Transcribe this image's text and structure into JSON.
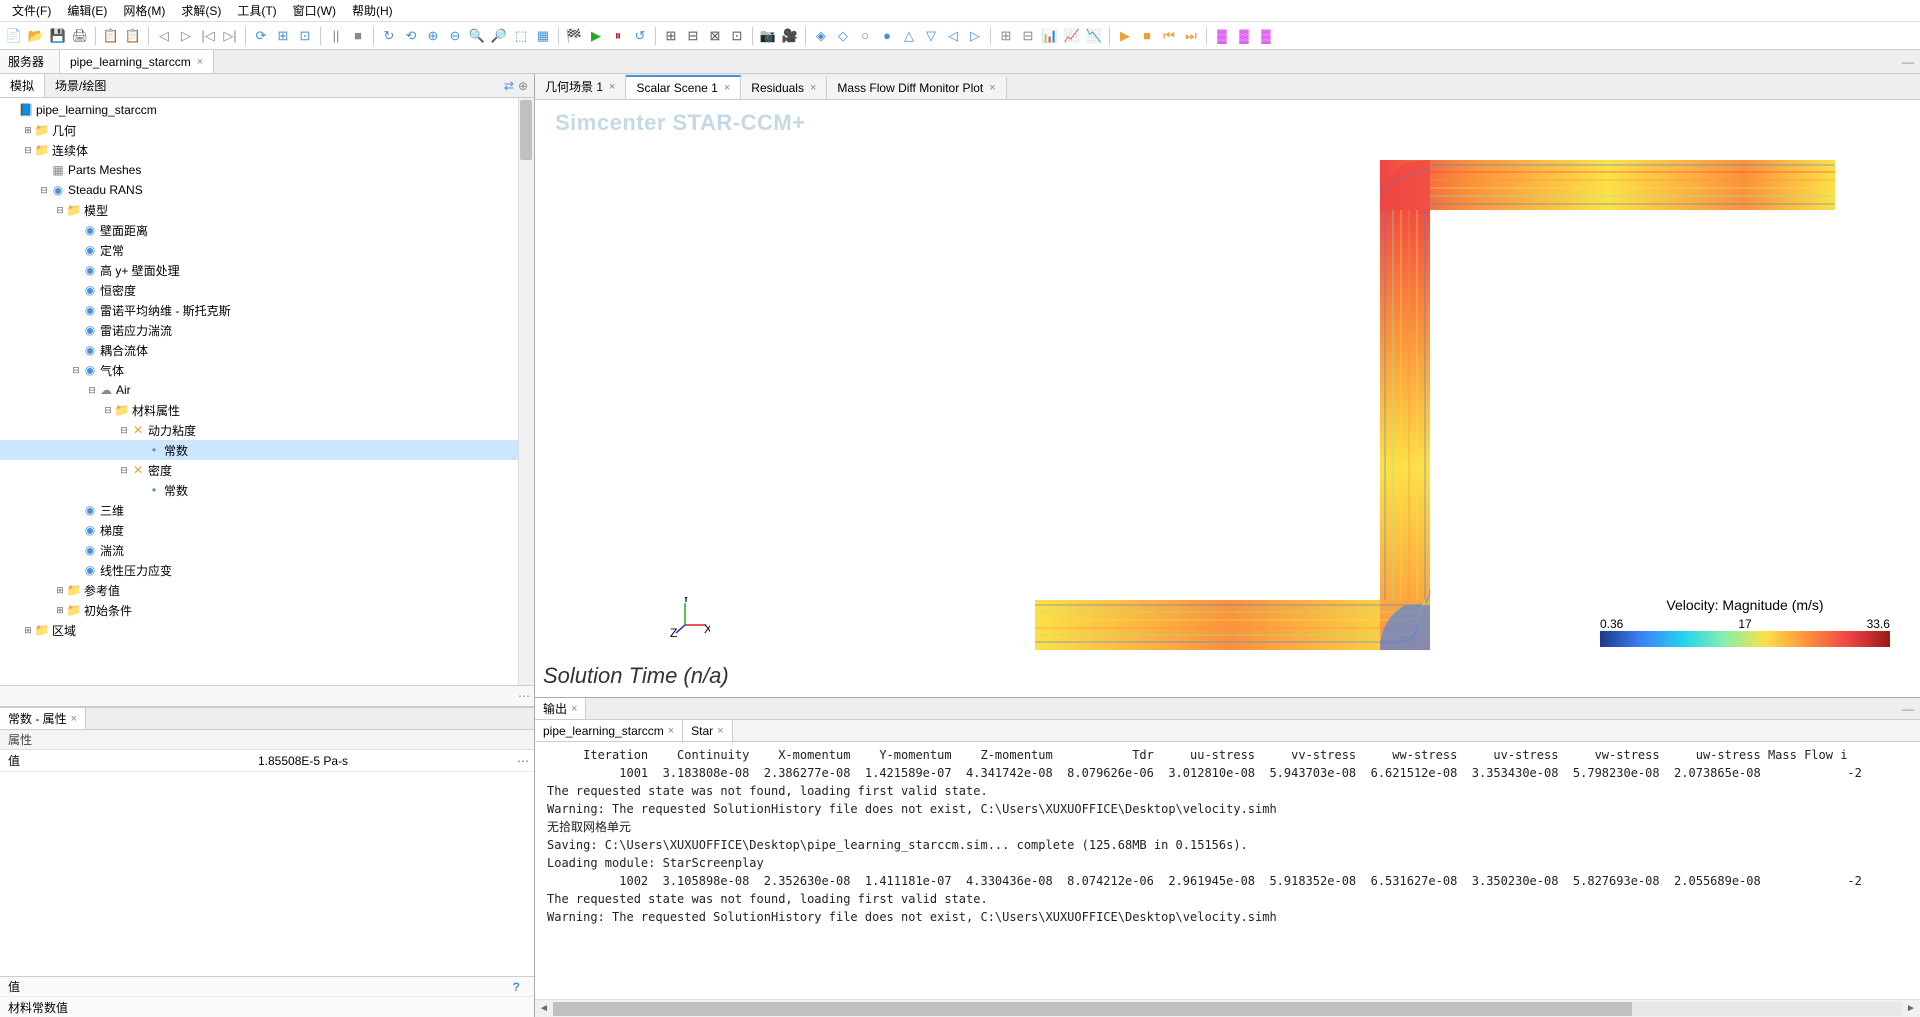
{
  "menu": [
    "文件(F)",
    "编辑(E)",
    "网格(M)",
    "求解(S)",
    "工具(T)",
    "窗口(W)",
    "帮助(H)"
  ],
  "toolbar_icons": [
    {
      "glyph": "📄",
      "c": "#e8a33d"
    },
    {
      "glyph": "📂",
      "c": "#e8a33d"
    },
    {
      "glyph": "💾",
      "c": "#4a90d9"
    },
    {
      "glyph": "🖨",
      "c": "#555"
    },
    {
      "sep": true
    },
    {
      "glyph": "📋",
      "c": "#e8a33d"
    },
    {
      "glyph": "📋",
      "c": "#4a90d9"
    },
    {
      "sep": true
    },
    {
      "glyph": "◁",
      "c": "#888"
    },
    {
      "glyph": "▷",
      "c": "#888"
    },
    {
      "glyph": "|◁",
      "c": "#888"
    },
    {
      "glyph": "▷|",
      "c": "#888"
    },
    {
      "sep": true
    },
    {
      "glyph": "⟳",
      "c": "#4a90d9"
    },
    {
      "glyph": "⊞",
      "c": "#4a90d9"
    },
    {
      "glyph": "⊡",
      "c": "#4a90d9"
    },
    {
      "sep": true
    },
    {
      "glyph": "||",
      "c": "#888"
    },
    {
      "glyph": "■",
      "c": "#888"
    },
    {
      "sep": true
    },
    {
      "glyph": "↻",
      "c": "#4a90d9"
    },
    {
      "glyph": "⟲",
      "c": "#4a90d9"
    },
    {
      "glyph": "⊕",
      "c": "#4a90d9"
    },
    {
      "glyph": "⊖",
      "c": "#4a90d9"
    },
    {
      "glyph": "🔍",
      "c": "#4a90d9"
    },
    {
      "glyph": "🔎",
      "c": "#4a90d9"
    },
    {
      "glyph": "⬚",
      "c": "#4a90d9"
    },
    {
      "glyph": "▦",
      "c": "#4a90d9"
    },
    {
      "sep": true
    },
    {
      "glyph": "🏁",
      "c": "#2a2"
    },
    {
      "glyph": "▶",
      "c": "#2a2"
    },
    {
      "glyph": "⏸",
      "c": "#a22"
    },
    {
      "glyph": "↺",
      "c": "#4a90d9"
    },
    {
      "sep": true
    },
    {
      "glyph": "⊞",
      "c": "#555"
    },
    {
      "glyph": "⊟",
      "c": "#555"
    },
    {
      "glyph": "⊠",
      "c": "#555"
    },
    {
      "glyph": "⊡",
      "c": "#555"
    },
    {
      "sep": true
    },
    {
      "glyph": "📷",
      "c": "#555"
    },
    {
      "glyph": "🎥",
      "c": "#555"
    },
    {
      "sep": true
    },
    {
      "glyph": "◈",
      "c": "#4a90d9"
    },
    {
      "glyph": "◇",
      "c": "#4a90d9"
    },
    {
      "glyph": "○",
      "c": "#4a90d9"
    },
    {
      "glyph": "●",
      "c": "#4a90d9"
    },
    {
      "glyph": "△",
      "c": "#4a90d9"
    },
    {
      "glyph": "▽",
      "c": "#4a90d9"
    },
    {
      "glyph": "◁",
      "c": "#4a90d9"
    },
    {
      "glyph": "▷",
      "c": "#4a90d9"
    },
    {
      "sep": true
    },
    {
      "glyph": "⊞",
      "c": "#888"
    },
    {
      "glyph": "⊟",
      "c": "#888"
    },
    {
      "glyph": "📊",
      "c": "#888"
    },
    {
      "glyph": "📈",
      "c": "#888"
    },
    {
      "glyph": "📉",
      "c": "#888"
    },
    {
      "sep": true
    },
    {
      "glyph": "▶",
      "c": "#e8a33d"
    },
    {
      "glyph": "■",
      "c": "#e8a33d"
    },
    {
      "glyph": "⏮",
      "c": "#e8a33d"
    },
    {
      "glyph": "⏭",
      "c": "#e8a33d"
    },
    {
      "sep": true
    },
    {
      "glyph": "▓",
      "c": "#d946ef"
    },
    {
      "glyph": "▓",
      "c": "#d946ef"
    },
    {
      "glyph": "▓",
      "c": "#d946ef"
    }
  ],
  "fileTabLeft": "服务器",
  "fileTab": "pipe_learning_starccm",
  "lpTabs": {
    "sim": "模拟",
    "scene": "场景/绘图"
  },
  "tree": [
    {
      "d": 0,
      "exp": "",
      "icon": "📘",
      "c": "#4a90d9",
      "label": "pipe_learning_starccm"
    },
    {
      "d": 1,
      "exp": "⊞",
      "icon": "📁",
      "c": "#4a90d9",
      "label": "几何"
    },
    {
      "d": 1,
      "exp": "⊟",
      "icon": "📁",
      "c": "#4a90d9",
      "label": "连续体"
    },
    {
      "d": 2,
      "exp": "",
      "icon": "▦",
      "c": "#888",
      "label": "Parts Meshes"
    },
    {
      "d": 2,
      "exp": "⊟",
      "icon": "◉",
      "c": "#4a90d9",
      "label": "Steadu RANS"
    },
    {
      "d": 3,
      "exp": "⊟",
      "icon": "📁",
      "c": "#4a90d9",
      "label": "模型"
    },
    {
      "d": 4,
      "exp": "",
      "icon": "◉",
      "c": "#4a90d9",
      "label": "壁面距离"
    },
    {
      "d": 4,
      "exp": "",
      "icon": "◉",
      "c": "#4a90d9",
      "label": "定常"
    },
    {
      "d": 4,
      "exp": "",
      "icon": "◉",
      "c": "#4a90d9",
      "label": "高 y+ 壁面处理"
    },
    {
      "d": 4,
      "exp": "",
      "icon": "◉",
      "c": "#4a90d9",
      "label": "恒密度"
    },
    {
      "d": 4,
      "exp": "",
      "icon": "◉",
      "c": "#4a90d9",
      "label": "雷诺平均纳维 - 斯托克斯"
    },
    {
      "d": 4,
      "exp": "",
      "icon": "◉",
      "c": "#4a90d9",
      "label": "雷诺应力湍流"
    },
    {
      "d": 4,
      "exp": "",
      "icon": "◉",
      "c": "#4a90d9",
      "label": "耦合流体"
    },
    {
      "d": 4,
      "exp": "⊟",
      "icon": "◉",
      "c": "#4a90d9",
      "label": "气体"
    },
    {
      "d": 5,
      "exp": "⊟",
      "icon": "☁",
      "c": "#888",
      "label": "Air"
    },
    {
      "d": 6,
      "exp": "⊟",
      "icon": "📁",
      "c": "#4a90d9",
      "label": "材料属性"
    },
    {
      "d": 7,
      "exp": "⊟",
      "icon": "✕",
      "c": "#e8a33d",
      "label": "动力粘度"
    },
    {
      "d": 8,
      "exp": "",
      "icon": "•",
      "c": "#4a90d9",
      "label": "常数",
      "sel": true
    },
    {
      "d": 7,
      "exp": "⊟",
      "icon": "✕",
      "c": "#e8a33d",
      "label": "密度"
    },
    {
      "d": 8,
      "exp": "",
      "icon": "•",
      "c": "#4a90d9",
      "label": "常数"
    },
    {
      "d": 4,
      "exp": "",
      "icon": "◉",
      "c": "#4a90d9",
      "label": "三维"
    },
    {
      "d": 4,
      "exp": "",
      "icon": "◉",
      "c": "#4a90d9",
      "label": "梯度"
    },
    {
      "d": 4,
      "exp": "",
      "icon": "◉",
      "c": "#4a90d9",
      "label": "湍流"
    },
    {
      "d": 4,
      "exp": "",
      "icon": "◉",
      "c": "#4a90d9",
      "label": "线性压力应变"
    },
    {
      "d": 3,
      "exp": "⊞",
      "icon": "📁",
      "c": "#4a90d9",
      "label": "参考值"
    },
    {
      "d": 3,
      "exp": "⊞",
      "icon": "📁",
      "c": "#4a90d9",
      "label": "初始条件"
    },
    {
      "d": 1,
      "exp": "⊞",
      "icon": "📁",
      "c": "#4a90d9",
      "label": "区域"
    }
  ],
  "propTab": "常数 - 属性",
  "propHead": "属性",
  "propKey": "值",
  "propVal": "1.85508E-5 Pa-s",
  "propFoot1": "值",
  "propFoot2": "材料常数值",
  "sceneTabs": [
    {
      "label": "几何场景 1",
      "active": false
    },
    {
      "label": "Scalar Scene 1",
      "active": true
    },
    {
      "label": "Residuals",
      "active": false
    },
    {
      "label": "Mass Flow Diff Monitor Plot",
      "active": false
    }
  ],
  "watermark": "Simcenter STAR-CCM+",
  "solTime": "Solution Time (n/a)",
  "legend": {
    "title": "Velocity: Magnitude (m/s)",
    "min": "0.36",
    "mid": "17",
    "max": "33.6"
  },
  "axes": {
    "x": "X",
    "y": "Y",
    "z": "Z"
  },
  "outTab": "输出",
  "outSubTabs": [
    "pipe_learning_starccm",
    "Star"
  ],
  "outHeader": "     Iteration    Continuity    X-momentum    Y-momentum    Z-momentum           Tdr     uu-stress     vv-stress     ww-stress     uv-stress     vw-stress     uw-stress Mass Flow i",
  "outLines": [
    "          1001  3.183808e-08  2.386277e-08  1.421589e-07  4.341742e-08  8.079626e-06  3.012810e-08  5.943703e-08  6.621512e-08  3.353430e-08  5.798230e-08  2.073865e-08            -2",
    "The requested state was not found, loading first valid state.",
    "Warning: The requested SolutionHistory file does not exist, C:\\Users\\XUXUOFFICE\\Desktop\\velocity.simh",
    "无拾取网格单元",
    "Saving: C:\\Users\\XUXUOFFICE\\Desktop\\pipe_learning_starccm.sim... complete (125.68MB in 0.15156s).",
    "Loading module: StarScreenplay",
    "          1002  3.105898e-08  2.352630e-08  1.411181e-07  4.330436e-08  8.074212e-06  2.961945e-08  5.918352e-08  6.531627e-08  3.350230e-08  5.827693e-08  2.055689e-08            -2",
    "The requested state was not found, loading first valid state.",
    "Warning: The requested SolutionHistory file does not exist, C:\\Users\\XUXUOFFICE\\Desktop\\velocity.simh"
  ]
}
